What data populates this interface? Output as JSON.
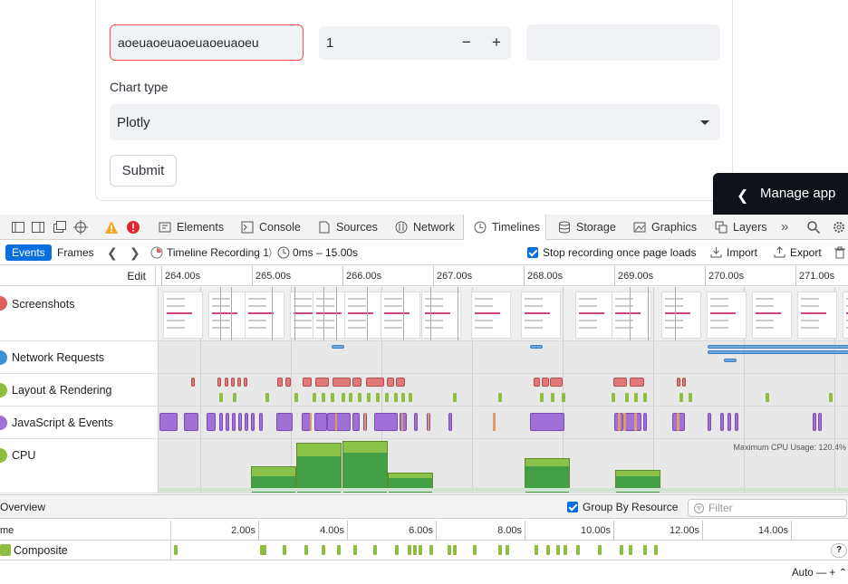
{
  "app": {
    "text_input_value": "aoeuaoeuaoeuaoeuaoeu",
    "number_value": "1",
    "minus_label": "−",
    "plus_label": "+",
    "chart_type_label": "Chart type",
    "chart_type_value": "Plotly",
    "submit_label": "Submit",
    "manage_app_label": "Manage app"
  },
  "devtools": {
    "tabs": [
      "Elements",
      "Console",
      "Sources",
      "Network",
      "Timelines",
      "Storage",
      "Graphics",
      "Layers"
    ],
    "active_tab": "Timelines",
    "toolbar": {
      "events": "Events",
      "frames": "Frames",
      "recording": "Timeline Recording 1",
      "range": "0ms – 15.00s",
      "stop_recording": "Stop recording once page loads",
      "import": "Import",
      "export": "Export"
    },
    "edit_label": "Edit",
    "ruler_ticks": [
      "264.00s",
      "265.00s",
      "266.00s",
      "267.00s",
      "268.00s",
      "269.00s",
      "270.00s",
      "271.00s"
    ],
    "rows": [
      "Screenshots",
      "Network Requests",
      "Layout & Rendering",
      "JavaScript & Events",
      "CPU"
    ],
    "cpu_max": "Maximum CPU Usage: 120.4%",
    "overview": {
      "title": "Overview",
      "group_by_resource": "Group By Resource",
      "filter_placeholder": "Filter"
    },
    "ruler2_ticks": [
      "2.00s",
      "4.00s",
      "6.00s",
      "8.00s",
      "10.00s",
      "12.00s",
      "14.00s"
    ],
    "name_column": "me",
    "composite_label": "Composite",
    "auto_label": "Auto — + ⌃"
  },
  "colors": {
    "error_border": "#ff4b4b",
    "active_blue": "#0a6fde",
    "layout_red": "#e07a7a",
    "paint_green": "#8fbd3f",
    "script_purple": "#a070d6",
    "cpu_green": "#43a047"
  }
}
